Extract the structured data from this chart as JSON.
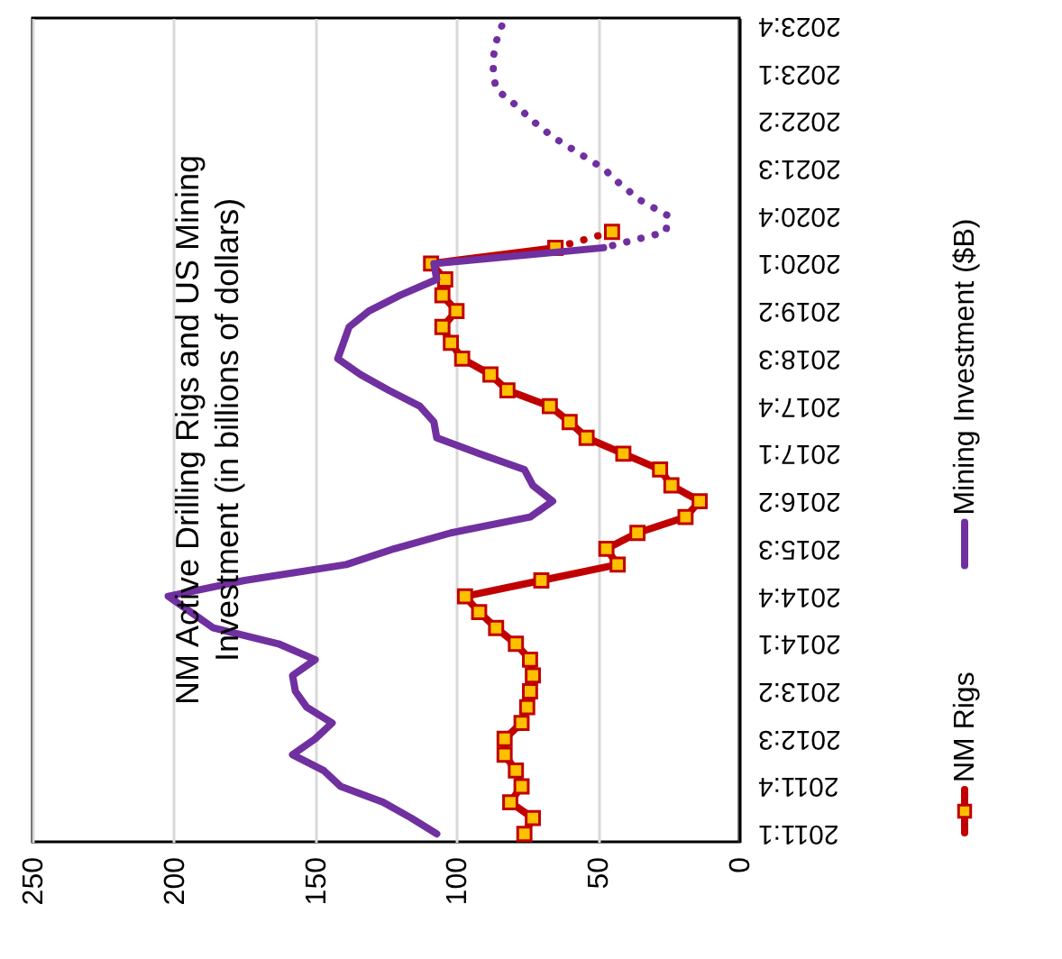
{
  "chart_data": {
    "type": "line",
    "orientation": "horizontal",
    "title": "NM Active Drilling Rigs and US Mining\nInvestment (in billions of dollars)",
    "categories": [
      "2023:4",
      null,
      null,
      "2023:1",
      null,
      null,
      "2022:2",
      null,
      null,
      "2021:3",
      null,
      null,
      "2020:4",
      null,
      null,
      "2020:1",
      null,
      null,
      "2019:2",
      null,
      null,
      "2018:3",
      null,
      null,
      "2017:4",
      null,
      null,
      "2017:1",
      null,
      null,
      "2016:2",
      null,
      null,
      "2015:3",
      null,
      null,
      "2014:4",
      null,
      null,
      "2014:1",
      null,
      null,
      "2013:2",
      null,
      null,
      "2012:3",
      null,
      null,
      "2011:4",
      null,
      null,
      "2011:1"
    ],
    "series": [
      {
        "name": "NM Rigs",
        "color": "#c00000",
        "marker": "square",
        "line_style": "solid",
        "values": [
          null,
          null,
          null,
          null,
          null,
          null,
          null,
          null,
          null,
          null,
          null,
          null,
          null,
          null,
          65,
          109,
          104,
          105,
          100,
          105,
          102,
          98,
          88,
          82,
          67,
          60,
          54,
          41,
          28,
          24,
          14,
          19,
          36,
          47,
          43,
          70,
          97,
          92,
          86,
          79,
          74,
          73,
          74,
          75,
          77,
          83,
          83,
          79,
          77,
          81,
          73,
          76
        ],
        "colors": [
          null,
          null,
          null,
          null,
          null,
          null,
          null,
          null,
          null,
          null,
          null,
          null,
          null,
          null,
          "#ffc000",
          "#ffc000",
          "#ffc000",
          "#ffc000",
          "#ffc000",
          "#ffc000",
          "#ffc000",
          "#ffc000",
          "#ffc000",
          "#ffc000",
          "#ffc000",
          "#ffc000",
          "#ffc000",
          "#ffc000",
          "#ffc000",
          "#ffc000",
          "#ffc000",
          "#ffc000",
          "#ffc000",
          "#ffc000",
          "#ffc000",
          "#ffc000",
          "#ffc000",
          "#ffc000",
          "#ffc000",
          "#ffc000",
          "#ffc000",
          "#ffc000",
          "#ffc000",
          "#ffc000",
          "#ffc000",
          "#ffc000",
          "#ffc000",
          "#ffc000",
          "#ffc000",
          "#ffc000",
          "#ffc000",
          "#ffc000"
        ]
      },
      {
        "color": "#c00000",
        "marker": "square",
        "line_style": "dotted",
        "values": [
          null,
          null,
          null,
          null,
          null,
          null,
          null,
          null,
          null,
          null,
          null,
          null,
          null,
          45,
          65,
          null,
          null,
          null,
          null,
          null,
          null,
          null,
          null,
          null,
          null,
          null,
          null,
          null,
          null,
          null,
          null,
          null,
          null,
          null,
          null,
          null,
          null,
          null,
          null,
          null,
          null,
          null,
          null,
          null,
          null,
          null,
          null,
          null,
          null,
          null,
          null,
          null
        ],
        "colors": [
          null,
          null,
          null,
          null,
          null,
          null,
          null,
          null,
          null,
          null,
          null,
          null,
          null,
          "#ffc000",
          "#ffc000",
          null,
          null,
          null,
          null,
          null,
          null,
          null,
          null,
          null,
          null,
          null,
          null,
          null,
          null,
          null,
          null,
          null,
          null,
          null,
          null,
          null,
          null,
          null,
          null,
          null,
          null,
          null,
          null,
          null,
          null,
          null,
          null,
          null,
          null,
          null,
          null,
          null
        ]
      },
      {
        "name": "Mining Investment ($B)",
        "color": "#7030a0",
        "line_style": "solid",
        "values": [
          null,
          null,
          null,
          null,
          null,
          null,
          null,
          null,
          null,
          null,
          null,
          null,
          null,
          null,
          48,
          108,
          107,
          120,
          131,
          138,
          140,
          142,
          134,
          124,
          113,
          108,
          107,
          92,
          76,
          73,
          66,
          74,
          102,
          122,
          139,
          175,
          202,
          194,
          186,
          163,
          150,
          158,
          157,
          153,
          144,
          150,
          158,
          147,
          141,
          126,
          116,
          107
        ]
      },
      {
        "color": "#7030a0",
        "line_style": "dotted",
        "values": [
          84,
          86,
          87,
          87,
          86,
          79,
          73,
          66,
          57,
          48,
          42,
          35,
          25,
          26,
          48,
          null,
          null,
          null,
          null,
          null,
          null,
          null,
          null,
          null,
          null,
          null,
          null,
          null,
          null,
          null,
          null,
          null,
          null,
          null,
          null,
          null,
          null,
          null,
          null,
          null,
          null,
          null,
          null,
          null,
          null,
          null,
          null,
          null,
          null,
          null,
          null,
          null
        ]
      }
    ],
    "xlim": [
      250,
      0
    ],
    "xticks": [
      0,
      50,
      100,
      150,
      200,
      250
    ],
    "grid": "x",
    "legend": "right"
  }
}
